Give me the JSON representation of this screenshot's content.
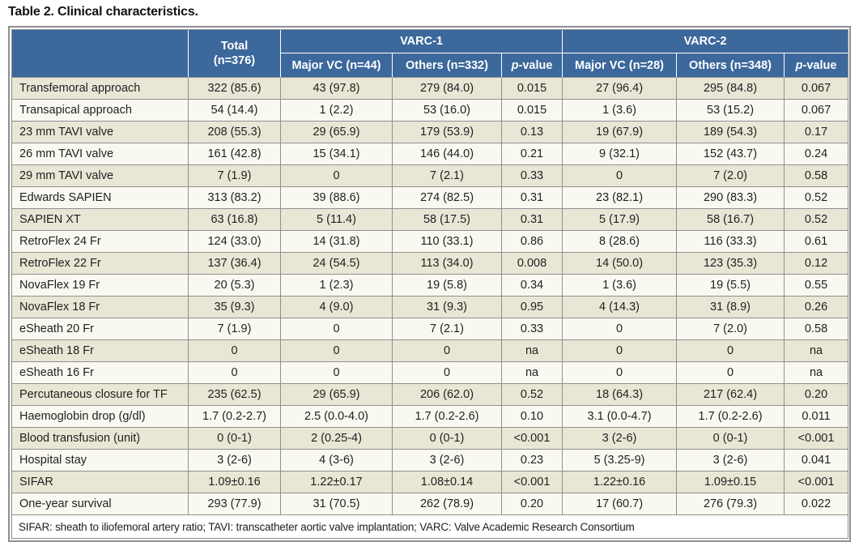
{
  "title": "Table 2. Clinical characteristics.",
  "colors": {
    "header_bg": "#3c689c",
    "row_dark": "#eae6d6",
    "row_light": "#faf9f1",
    "border": "#8f8f8f",
    "text": "#1f1f1f",
    "header_text": "#ffffff"
  },
  "table": {
    "header": {
      "label_blank": "",
      "total_line1": "Total",
      "total_line2": "(n=376)",
      "varc1": "VARC-1",
      "varc2": "VARC-2",
      "sub": {
        "varc1_major": "Major VC (n=44)",
        "varc1_others": "Others (n=332)",
        "varc2_major": "Major VC (n=28)",
        "varc2_others": "Others (n=348)",
        "p_italic": "p",
        "p_rest": "-value"
      }
    },
    "rows": [
      [
        "Transfemoral approach",
        "322 (85.6)",
        "43 (97.8)",
        "279 (84.0)",
        "0.015",
        "27 (96.4)",
        "295 (84.8)",
        "0.067"
      ],
      [
        "Transapical approach",
        "54 (14.4)",
        "1 (2.2)",
        "53 (16.0)",
        "0.015",
        "1 (3.6)",
        "53 (15.2)",
        "0.067"
      ],
      [
        "23 mm TAVI valve",
        "208 (55.3)",
        "29 (65.9)",
        "179 (53.9)",
        "0.13",
        "19 (67.9)",
        "189 (54.3)",
        "0.17"
      ],
      [
        "26 mm TAVI valve",
        "161 (42.8)",
        "15 (34.1)",
        "146 (44.0)",
        "0.21",
        "9 (32.1)",
        "152 (43.7)",
        "0.24"
      ],
      [
        "29 mm TAVI valve",
        "7 (1.9)",
        "0",
        "7 (2.1)",
        "0.33",
        "0",
        "7 (2.0)",
        "0.58"
      ],
      [
        "Edwards SAPIEN",
        "313 (83.2)",
        "39 (88.6)",
        "274 (82.5)",
        "0.31",
        "23 (82.1)",
        "290 (83.3)",
        "0.52"
      ],
      [
        "SAPIEN XT",
        "63 (16.8)",
        "5 (11.4)",
        "58 (17.5)",
        "0.31",
        "5 (17.9)",
        "58 (16.7)",
        "0.52"
      ],
      [
        "RetroFlex 24 Fr",
        "124 (33.0)",
        "14 (31.8)",
        "110 (33.1)",
        "0.86",
        "8 (28.6)",
        "116 (33.3)",
        "0.61"
      ],
      [
        "RetroFlex 22 Fr",
        "137 (36.4)",
        "24 (54.5)",
        "113 (34.0)",
        "0.008",
        "14 (50.0)",
        "123 (35.3)",
        "0.12"
      ],
      [
        "NovaFlex 19 Fr",
        "20 (5.3)",
        "1 (2.3)",
        "19 (5.8)",
        "0.34",
        "1 (3.6)",
        "19 (5.5)",
        "0.55"
      ],
      [
        "NovaFlex 18 Fr",
        "35 (9.3)",
        "4 (9.0)",
        "31 (9.3)",
        "0.95",
        "4 (14.3)",
        "31 (8.9)",
        "0.26"
      ],
      [
        "eSheath 20 Fr",
        "7 (1.9)",
        "0",
        "7 (2.1)",
        "0.33",
        "0",
        "7 (2.0)",
        "0.58"
      ],
      [
        "eSheath 18 Fr",
        "0",
        "0",
        "0",
        "na",
        "0",
        "0",
        "na"
      ],
      [
        "eSheath 16 Fr",
        "0",
        "0",
        "0",
        "na",
        "0",
        "0",
        "na"
      ],
      [
        "Percutaneous closure for TF",
        "235 (62.5)",
        "29 (65.9)",
        "206 (62.0)",
        "0.52",
        "18 (64.3)",
        "217 (62.4)",
        "0.20"
      ],
      [
        "Haemoglobin drop (g/dl)",
        "1.7 (0.2-2.7)",
        "2.5 (0.0-4.0)",
        "1.7 (0.2-2.6)",
        "0.10",
        "3.1 (0.0-4.7)",
        "1.7 (0.2-2.6)",
        "0.011"
      ],
      [
        "Blood transfusion (unit)",
        "0 (0-1)",
        "2 (0.25-4)",
        "0 (0-1)",
        "<0.001",
        "3 (2-6)",
        "0 (0-1)",
        "<0.001"
      ],
      [
        "Hospital stay",
        "3 (2-6)",
        "4 (3-6)",
        "3 (2-6)",
        "0.23",
        "5 (3.25-9)",
        "3 (2-6)",
        "0.041"
      ],
      [
        "SIFAR",
        "1.09±0.16",
        "1.22±0.17",
        "1.08±0.14",
        "<0.001",
        "1.22±0.16",
        "1.09±0.15",
        "<0.001"
      ],
      [
        "One-year survival",
        "293 (77.9)",
        "31 (70.5)",
        "262 (78.9)",
        "0.20",
        "17 (60.7)",
        "276 (79.3)",
        "0.022"
      ]
    ],
    "footnote": "SIFAR: sheath to iliofemoral artery ratio; TAVI: transcatheter aortic valve implantation; VARC: Valve Academic Research Consortium"
  }
}
